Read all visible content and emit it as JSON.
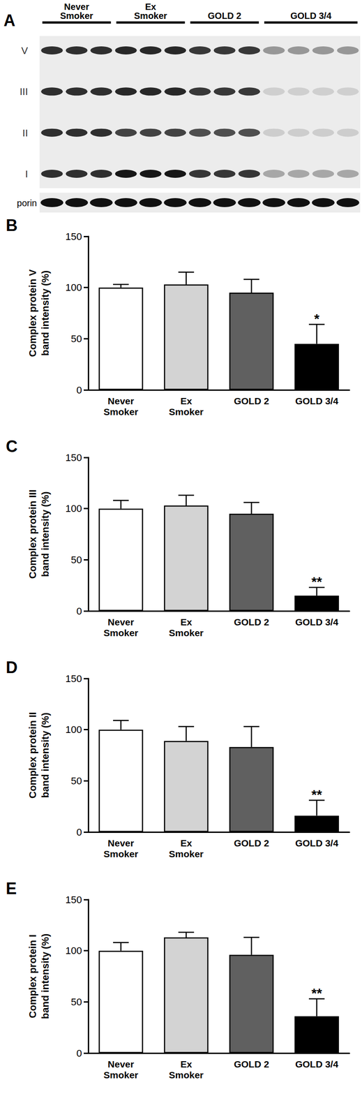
{
  "blot": {
    "panel": "A",
    "groups": [
      {
        "label": "Never\nSmoker",
        "lanes": 3
      },
      {
        "label": "Ex\nSmoker",
        "lanes": 3
      },
      {
        "label": "GOLD 2",
        "lanes": 3
      },
      {
        "label": "GOLD 3/4",
        "lanes": 4
      }
    ],
    "bands": [
      "V",
      "III",
      "II",
      "I"
    ],
    "loading_control": "porin"
  },
  "chart_data": [
    {
      "type": "bar",
      "panel": "B",
      "categories": [
        "Never\nSmoker",
        "Ex\nSmoker",
        "GOLD 2",
        "GOLD 3/4"
      ],
      "values": [
        100,
        103,
        95,
        45
      ],
      "errors": [
        3,
        12,
        13,
        19
      ],
      "colors": [
        "#ffffff",
        "#d3d3d3",
        "#606060",
        "#000000"
      ],
      "ylabel": "Complex protein V\nband intensity (%)",
      "ylim": [
        0,
        150
      ],
      "yticks": [
        0,
        50,
        100,
        150
      ],
      "grid": false,
      "annotations": [
        {
          "category": "GOLD 3/4",
          "text": "*"
        }
      ]
    },
    {
      "type": "bar",
      "panel": "C",
      "categories": [
        "Never\nSmoker",
        "Ex\nSmoker",
        "GOLD 2",
        "GOLD 3/4"
      ],
      "values": [
        100,
        103,
        95,
        15
      ],
      "errors": [
        8,
        10,
        11,
        8
      ],
      "colors": [
        "#ffffff",
        "#d3d3d3",
        "#606060",
        "#000000"
      ],
      "ylabel": "Complex protein III\nband intensity (%)",
      "ylim": [
        0,
        150
      ],
      "yticks": [
        0,
        50,
        100,
        150
      ],
      "grid": false,
      "annotations": [
        {
          "category": "GOLD 3/4",
          "text": "**"
        }
      ]
    },
    {
      "type": "bar",
      "panel": "D",
      "categories": [
        "Never\nSmoker",
        "Ex\nSmoker",
        "GOLD 2",
        "GOLD 3/4"
      ],
      "values": [
        100,
        89,
        83,
        16
      ],
      "errors": [
        9,
        14,
        20,
        15
      ],
      "colors": [
        "#ffffff",
        "#d3d3d3",
        "#606060",
        "#000000"
      ],
      "ylabel": "Complex protein II\nband intensity (%)",
      "ylim": [
        0,
        150
      ],
      "yticks": [
        0,
        50,
        100,
        150
      ],
      "grid": false,
      "annotations": [
        {
          "category": "GOLD 3/4",
          "text": "**"
        }
      ]
    },
    {
      "type": "bar",
      "panel": "E",
      "categories": [
        "Never\nSmoker",
        "Ex\nSmoker",
        "GOLD 2",
        "GOLD 3/4"
      ],
      "values": [
        100,
        113,
        96,
        36
      ],
      "errors": [
        8,
        5,
        17,
        17
      ],
      "colors": [
        "#ffffff",
        "#d3d3d3",
        "#606060",
        "#000000"
      ],
      "ylabel": "Complex protein I\nband intensity (%)",
      "ylim": [
        0,
        150
      ],
      "yticks": [
        0,
        50,
        100,
        150
      ],
      "grid": false,
      "annotations": [
        {
          "category": "GOLD 3/4",
          "text": "**"
        }
      ]
    }
  ]
}
